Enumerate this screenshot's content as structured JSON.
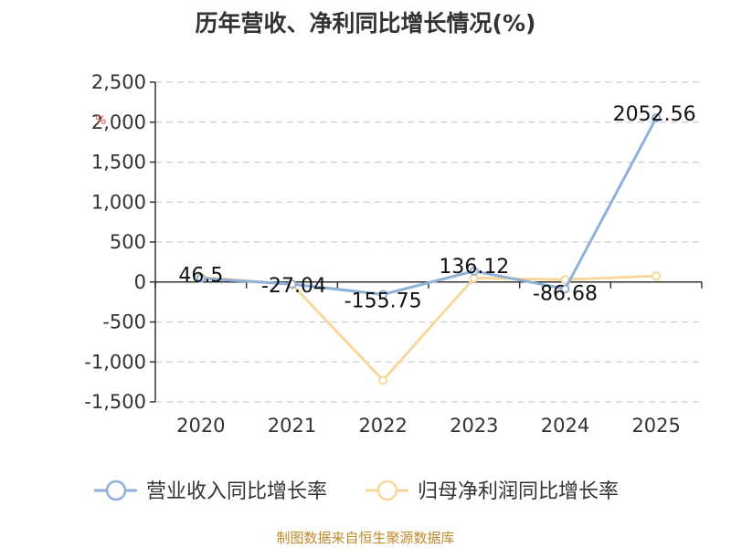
{
  "title": "历年营收、净利同比增长情况(%)",
  "footer": "制图数据来自恒生聚源数据库",
  "axis_unit": "%",
  "chart_data": {
    "type": "line",
    "title": "历年营收、净利同比增长情况(%)",
    "ylabel": "%",
    "x": [
      "2020",
      "2021",
      "2022",
      "2023",
      "2024",
      "2025"
    ],
    "ylim": [
      -1500,
      2500
    ],
    "yticks": [
      -1500,
      -1000,
      -500,
      0,
      500,
      1000,
      1500,
      2000,
      2500
    ],
    "ytick_labels": [
      "-1,500",
      "-1,000",
      "-500",
      "0",
      "500",
      "1,000",
      "1,500",
      "2,000",
      "2,500"
    ],
    "grid": true,
    "legend_position": "bottom",
    "series": [
      {
        "name": "营业收入同比增长率",
        "color": "#8fb0d8",
        "values": [
          46.5,
          -27.04,
          -155.75,
          136.12,
          -86.68,
          2052.56
        ],
        "labels": [
          "46.5",
          "-27.04",
          "-155.75",
          "136.12",
          "-86.68",
          "2052.56"
        ]
      },
      {
        "name": "归母净利润同比增长率",
        "color": "#f8d79a",
        "values": [
          60,
          -30,
          -1230,
          50,
          30,
          75
        ]
      }
    ]
  }
}
